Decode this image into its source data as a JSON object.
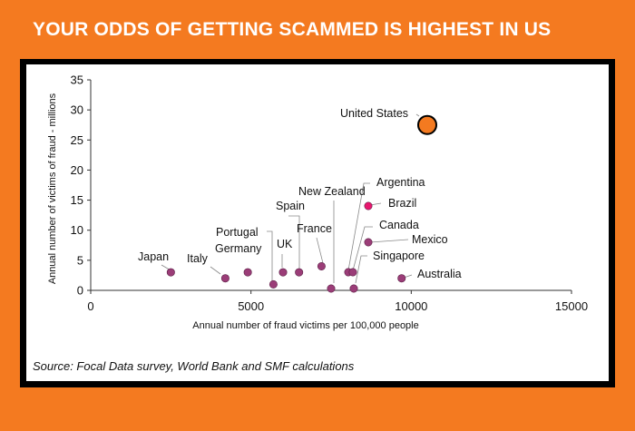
{
  "headline": "YOUR ODDS OF GETTING SCAMMED IS HIGHEST IN US",
  "source": "Source: Focal Data survey, World Bank and SMF calculations",
  "colors": {
    "background": "#f47a20",
    "point": "#9b3d78",
    "highlight_point": "#e8176e",
    "us_point": "#f47a20"
  },
  "chart_data": {
    "type": "scatter",
    "title": "",
    "xlabel": "Annual number of fraud victims per 100,000 people",
    "ylabel": "Annual number of victims of fraud - millions",
    "xlim": [
      0,
      15000
    ],
    "ylim": [
      0,
      35
    ],
    "xticks": [
      0,
      5000,
      10000,
      15000
    ],
    "yticks": [
      0,
      5,
      10,
      15,
      20,
      25,
      30,
      35
    ],
    "grid": false,
    "points": [
      {
        "label": "Japan",
        "x": 2500,
        "y": 3
      },
      {
        "label": "Italy",
        "x": 4200,
        "y": 2
      },
      {
        "label": "Germany",
        "x": 4900,
        "y": 3
      },
      {
        "label": "Portugal",
        "x": 5700,
        "y": 1
      },
      {
        "label": "UK",
        "x": 6000,
        "y": 3
      },
      {
        "label": "Spain",
        "x": 6500,
        "y": 3
      },
      {
        "label": "France",
        "x": 7200,
        "y": 4
      },
      {
        "label": "New Zealand",
        "x": 7500,
        "y": 0.5
      },
      {
        "label": "Argentina",
        "x": 8200,
        "y": 3
      },
      {
        "label": "Brazil",
        "x": 8600,
        "y": 14
      },
      {
        "label": "Canada",
        "x": 8600,
        "y": 8
      },
      {
        "label": "Mexico",
        "x": 8600,
        "y": 8
      },
      {
        "label": "Singapore",
        "x": 8200,
        "y": 0.5
      },
      {
        "label": "Australia",
        "x": 9700,
        "y": 2
      },
      {
        "label": "United States",
        "x": 10500,
        "y": 27.5
      }
    ]
  }
}
